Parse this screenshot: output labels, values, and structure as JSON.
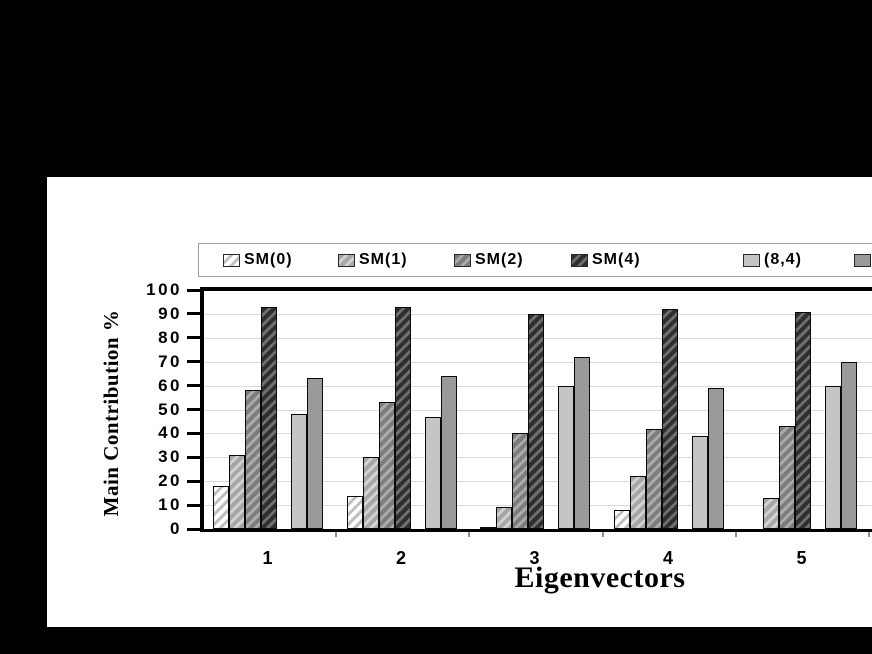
{
  "chart_data": {
    "type": "bar",
    "title": "",
    "xlabel": "Eigenvectors",
    "ylabel": "Main Contribution %",
    "categories": [
      "1",
      "2",
      "3",
      "4",
      "5"
    ],
    "ylim": [
      0,
      100
    ],
    "ytick_step": 10,
    "y_tick_labels": [
      "0",
      "10",
      "20",
      "30",
      "40",
      "50",
      "60",
      "70",
      "80",
      "90",
      "100"
    ],
    "grid": true,
    "legend_position": "top, horizontal, clipped at right edge",
    "series": [
      {
        "name": "SM(0)",
        "pattern": "diagonal-hatch",
        "fill": "#ffffff",
        "stripe": "#bfbfbf",
        "values": [
          18,
          14,
          1,
          8,
          0
        ]
      },
      {
        "name": "SM(1)",
        "pattern": "diagonal-hatch",
        "fill": "#a6a6a6",
        "stripe": "#d2d2d2",
        "values": [
          31,
          30,
          9,
          22,
          13
        ]
      },
      {
        "name": "SM(2)",
        "pattern": "diagonal-hatch",
        "fill": "#7d7d7d",
        "stripe": "#ababab",
        "values": [
          58,
          53,
          40,
          42,
          43
        ]
      },
      {
        "name": "SM(4)",
        "pattern": "diagonal-hatch",
        "fill": "#2f2f2f",
        "stripe": "#6f6f6f",
        "values": [
          93,
          93,
          90,
          92,
          91
        ]
      },
      {
        "name": "(8,4)",
        "pattern": "solid",
        "fill": "#c5c5c5",
        "stripe": null,
        "values": [
          48,
          47,
          60,
          39,
          60
        ]
      },
      {
        "name": "(",
        "pattern": "solid",
        "fill": "#9a9a9a",
        "stripe": null,
        "values": [
          63,
          64,
          72,
          59,
          70
        ]
      }
    ]
  },
  "colors": {
    "figure_background": "#ffffff",
    "matte_background": "#000000",
    "axis": "#000000",
    "gridline": "#dadada",
    "legend_border": "#a3a3a3"
  }
}
